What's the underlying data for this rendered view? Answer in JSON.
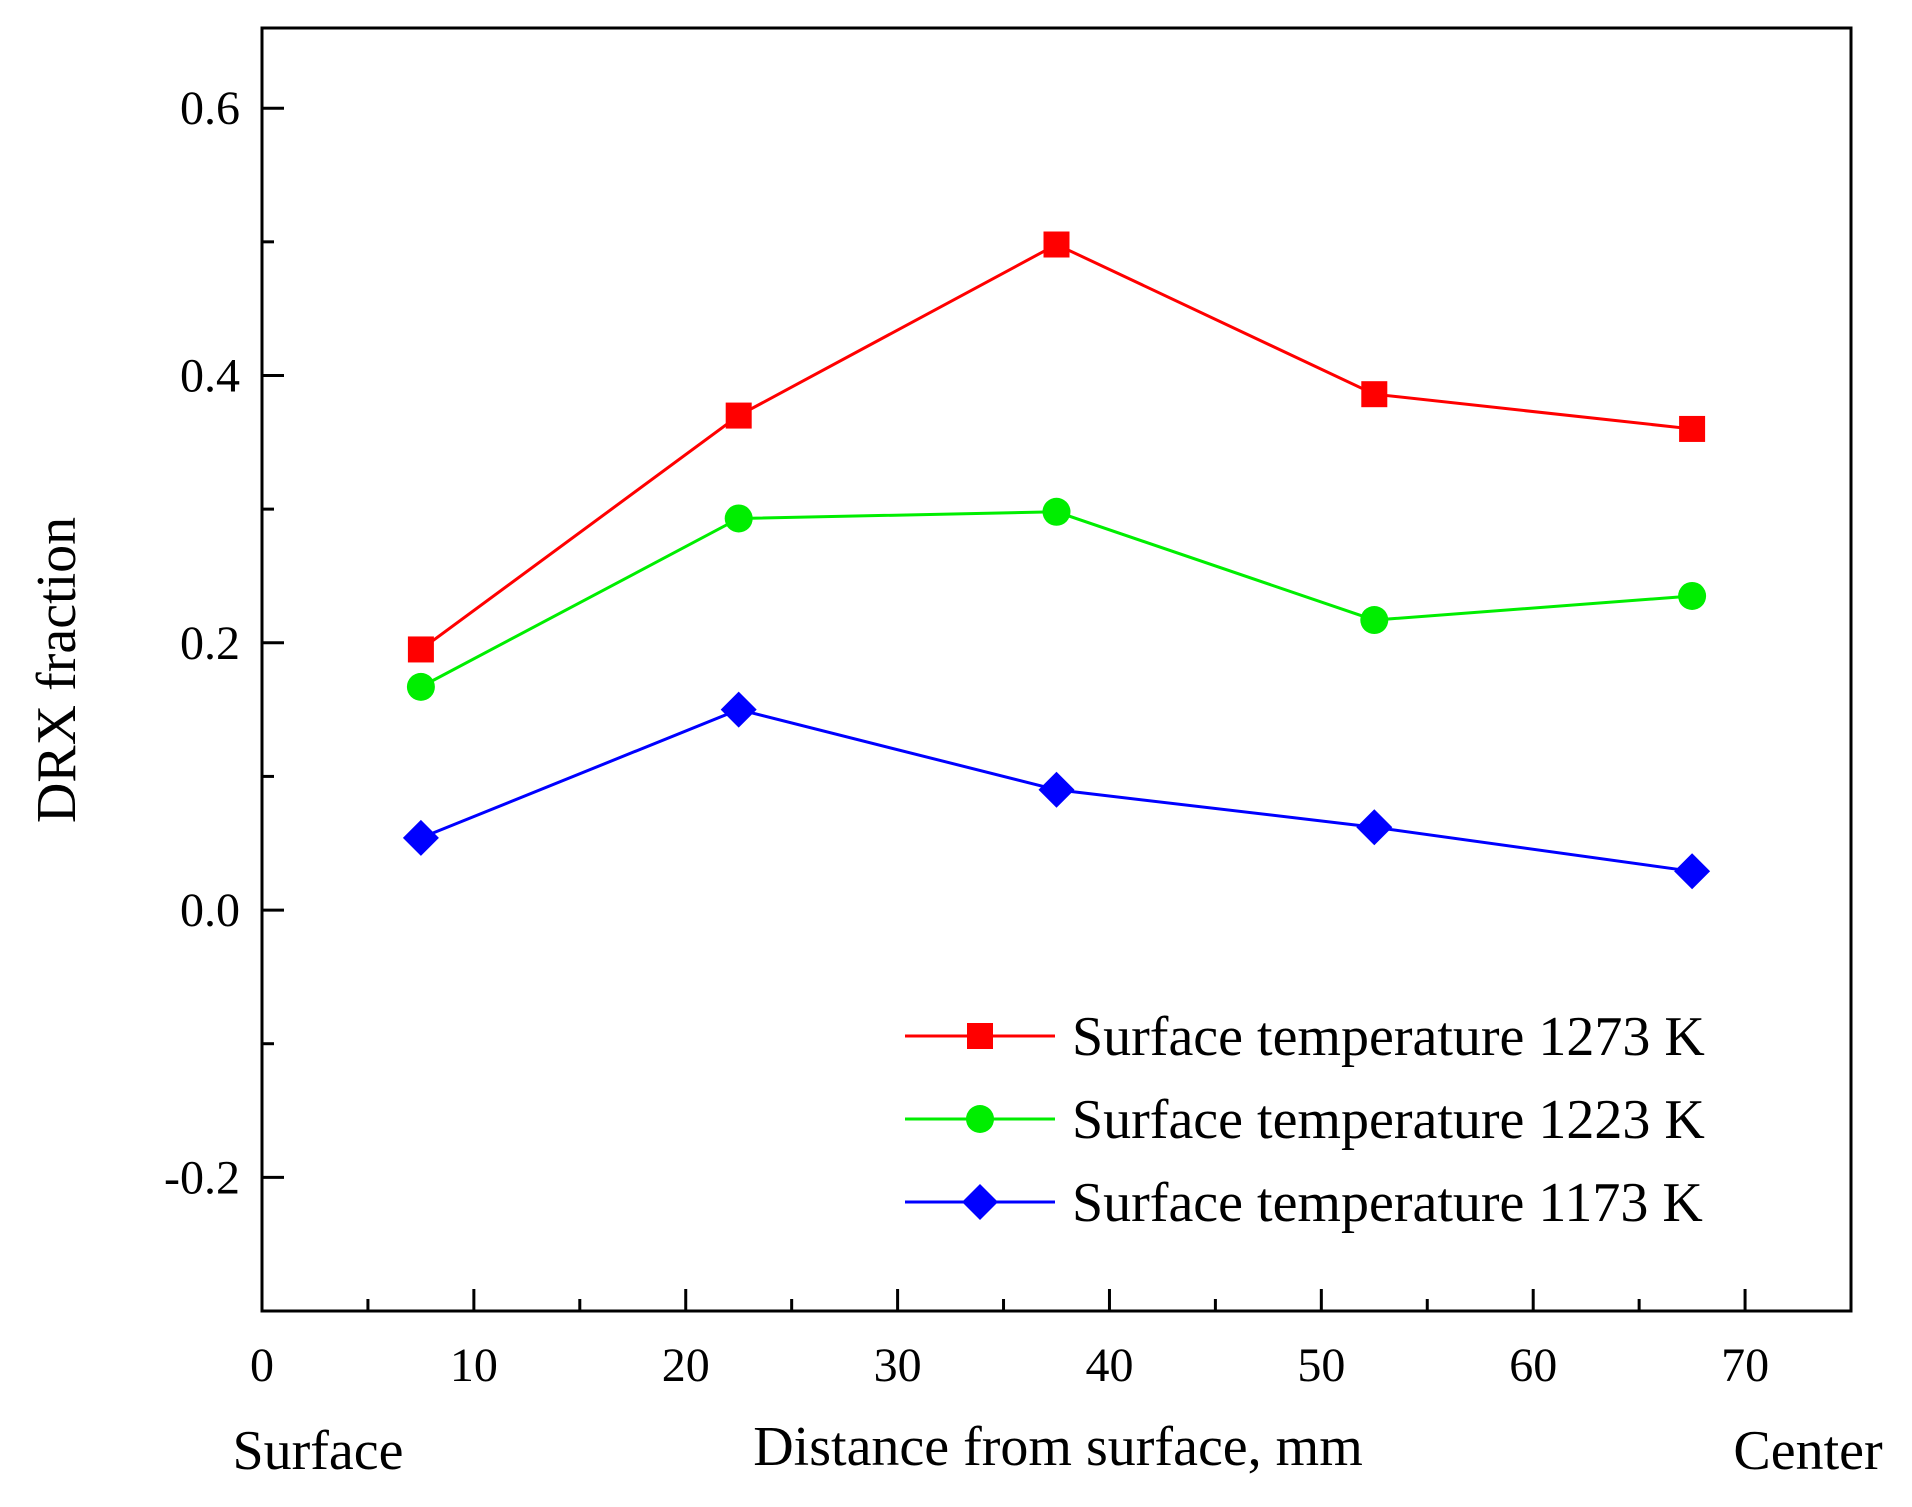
{
  "chart_data": {
    "type": "line",
    "title": "",
    "xlabel": "Distance from surface, mm",
    "ylabel": "DRX fraction",
    "x_side_labels": {
      "left": "Surface",
      "right": "Center"
    },
    "xlim": [
      0,
      75
    ],
    "ylim": [
      -0.3,
      0.66
    ],
    "x_ticks": [
      0,
      10,
      20,
      30,
      40,
      50,
      60,
      70
    ],
    "x_tick_labels": [
      "0",
      "10",
      "20",
      "30",
      "40",
      "50",
      "60",
      "70"
    ],
    "y_ticks": [
      -0.2,
      0.0,
      0.2,
      0.4,
      0.6
    ],
    "y_tick_labels": [
      "-0.2",
      "0.0",
      "0.2",
      "0.4",
      "0.6"
    ],
    "grid": false,
    "legend_position": "bottom-right",
    "x": [
      7.5,
      22.5,
      37.5,
      52.5,
      67.5
    ],
    "series": [
      {
        "name": "Surface temperature 1273 K",
        "color": "#ff0000",
        "marker": "square",
        "values": [
          0.195,
          0.37,
          0.498,
          0.386,
          0.36
        ]
      },
      {
        "name": "Surface temperature 1223 K",
        "color": "#00ee00",
        "marker": "circle",
        "values": [
          0.167,
          0.293,
          0.298,
          0.217,
          0.235
        ]
      },
      {
        "name": "Surface temperature 1173 K",
        "color": "#0000ff",
        "marker": "diamond",
        "values": [
          0.054,
          0.15,
          0.09,
          0.062,
          0.029
        ]
      }
    ]
  }
}
